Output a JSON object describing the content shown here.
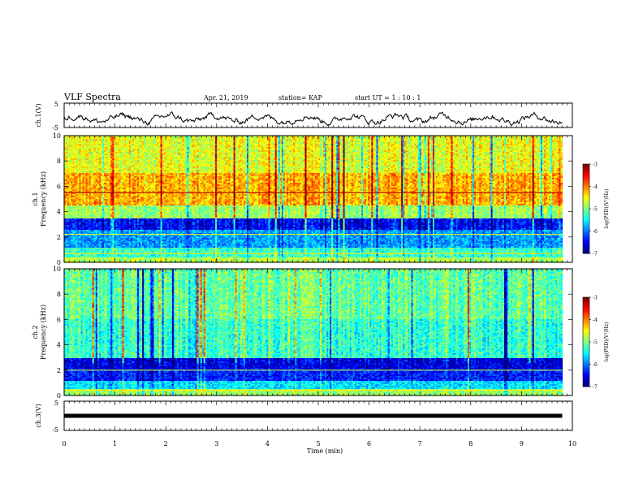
{
  "header": {
    "title": "VLF Spectra",
    "date": "Apr. 21, 2019",
    "station": "station= KAP",
    "start": "start  UT  =   1 : 10 : 1"
  },
  "chart_data": [
    {
      "type": "line",
      "panel": "ch1-waveform",
      "ylabel": "ch.1(V)",
      "ylim": [
        -5,
        5
      ],
      "yticks": [
        "5",
        "-5"
      ],
      "xlim": [
        0,
        10
      ],
      "description_note": "noisy waveform fluctuating near 0 V over the record (0 to ~9.8 min)",
      "record_end_min": 9.8,
      "color": "#000000"
    },
    {
      "type": "heatmap",
      "panel": "ch1-spectrogram",
      "ylabel_top": "ch.1",
      "ylabel": "Frequency (kHz)",
      "ylim": [
        0,
        10
      ],
      "yticks": [
        "0",
        "2",
        "4",
        "6",
        "8",
        "10"
      ],
      "xlim": [
        0,
        10
      ],
      "record_end_min": 9.8,
      "colorbar": {
        "label": "log(PSD)(V²/Hz)",
        "range": [
          -7,
          -3
        ],
        "ticks": [
          "-3",
          "-4",
          "-5",
          "-6",
          "-7"
        ]
      },
      "bands_khz": [
        {
          "from": 0,
          "to": 0.4,
          "level": -4.8
        },
        {
          "from": 0.4,
          "to": 1.2,
          "level": -5.3
        },
        {
          "from": 1.2,
          "to": 2.6,
          "level": -5.9
        },
        {
          "from": 2.6,
          "to": 3.4,
          "level": -6.5
        },
        {
          "from": 3.4,
          "to": 4.5,
          "level": -4.9
        },
        {
          "from": 4.5,
          "to": 7.0,
          "level": -4.2
        },
        {
          "from": 7.0,
          "to": 10.0,
          "level": -4.6
        }
      ],
      "lines_khz": [
        {
          "f": 5.5,
          "level": -3.2
        },
        {
          "f": 2.2,
          "level": -4.6
        },
        {
          "f": 0.7,
          "level": -4.4
        }
      ]
    },
    {
      "type": "heatmap",
      "panel": "ch2-spectrogram",
      "ylabel_top": "ch.2",
      "ylabel": "Frequency (kHz)",
      "ylim": [
        0,
        10
      ],
      "yticks": [
        "0",
        "2",
        "4",
        "6",
        "8",
        "10"
      ],
      "xlim": [
        0,
        10
      ],
      "record_end_min": 9.8,
      "colorbar": {
        "label": "log(PSD)(V²/Hz)",
        "range": [
          -7,
          -3
        ],
        "ticks": [
          "-3",
          "-4",
          "-5",
          "-6",
          "-7"
        ]
      },
      "bands_khz": [
        {
          "from": 0,
          "to": 0.5,
          "level": -4.9
        },
        {
          "from": 0.5,
          "to": 1.2,
          "level": -5.6
        },
        {
          "from": 1.2,
          "to": 2.0,
          "level": -6.4
        },
        {
          "from": 2.0,
          "to": 3.0,
          "level": -6.6
        },
        {
          "from": 3.0,
          "to": 6.0,
          "level": -5.3
        },
        {
          "from": 6.0,
          "to": 10.0,
          "level": -5.1
        }
      ],
      "lines_khz": [
        {
          "f": 2.0,
          "level": -4.8
        },
        {
          "f": 0.4,
          "level": -4.4
        }
      ]
    },
    {
      "type": "line",
      "panel": "ch3-waveform",
      "ylabel": "ch.3(V)",
      "ylim": [
        -5,
        5
      ],
      "yticks": [
        "5",
        "-5"
      ],
      "xlim": [
        0,
        10
      ],
      "xlabel": "Time (min)",
      "xticks": [
        "0",
        "1",
        "2",
        "3",
        "4",
        "5",
        "6",
        "7",
        "8",
        "9",
        "10"
      ],
      "x": [
        0,
        9.8
      ],
      "y": [
        0,
        0
      ],
      "color": "#000000"
    }
  ]
}
